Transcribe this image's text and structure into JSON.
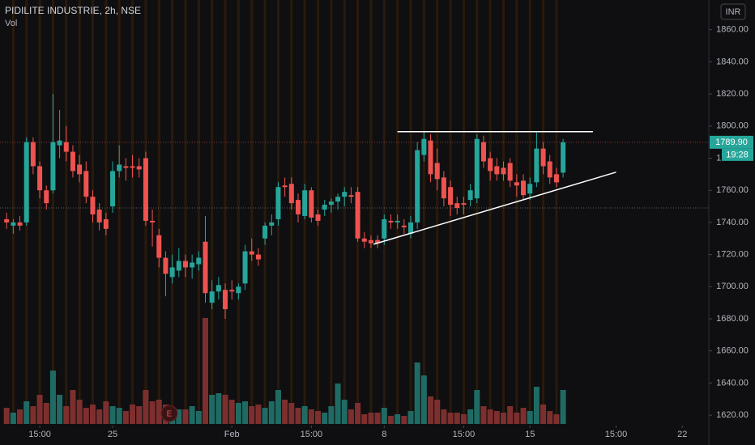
{
  "chart_data": {
    "type": "candlestick",
    "title": "PIDILITE INDUSTRIE, 2h, NSE",
    "volume_label": "Vol",
    "currency": "INR",
    "countdown": "19:28",
    "earnings_label": "E",
    "last_price": {
      "value": 1789.9,
      "label": "1789.90"
    },
    "reference_price": 1749,
    "colors": {
      "up": "#26a69a",
      "down": "#ef5350",
      "up_volume": "#1f6b64",
      "down_volume": "#7d2f2e"
    },
    "xlim": [
      -1,
      106
    ],
    "xticks": [
      {
        "value": 5,
        "label": "15:00"
      },
      {
        "value": 16,
        "label": "25"
      },
      {
        "value": 34,
        "label": "Feb"
      },
      {
        "value": 46,
        "label": "15:00"
      },
      {
        "value": 57,
        "label": "8"
      },
      {
        "value": 69,
        "label": "15:00"
      },
      {
        "value": 79,
        "label": "15"
      },
      {
        "value": 92,
        "label": "15:00"
      },
      {
        "value": 102,
        "label": "22"
      }
    ],
    "ylim": [
      1614,
      1878
    ],
    "yticks": [
      {
        "value": 1860,
        "label": "1860.00"
      },
      {
        "value": 1840,
        "label": "1840.00"
      },
      {
        "value": 1820,
        "label": "1820.00"
      },
      {
        "value": 1800,
        "label": "1800.00"
      },
      {
        "value": 1780,
        "label": "1780.00"
      },
      {
        "value": 1760,
        "label": "1760.00"
      },
      {
        "value": 1740,
        "label": "1740.00"
      },
      {
        "value": 1720,
        "label": "1720.00"
      },
      {
        "value": 1700,
        "label": "1700.00"
      },
      {
        "value": 1680,
        "label": "1680.00"
      },
      {
        "value": 1660,
        "label": "1660.00"
      },
      {
        "value": 1640,
        "label": "1640.00"
      },
      {
        "value": 1620,
        "label": "1620.00"
      }
    ],
    "open": [
      1742,
      1738,
      1740,
      1740,
      1790,
      1775,
      1760,
      1760,
      1788,
      1790,
      1784,
      1776,
      1772,
      1756,
      1748,
      1742,
      1750,
      1772,
      1775,
      1775,
      1775,
      1780,
      1741,
      1732,
      1718,
      1706,
      1710,
      1716,
      1712,
      1714,
      1728,
      1690,
      1697,
      1698,
      1698,
      1696,
      1702,
      1722,
      1720,
      1730,
      1738,
      1742,
      1763,
      1764,
      1754,
      1744,
      1760,
      1745,
      1748,
      1751,
      1753,
      1756,
      1757,
      1759,
      1730,
      1729,
      1729,
      1730,
      1741,
      1740,
      1738,
      1733,
      1740,
      1782,
      1791,
      1777,
      1768,
      1762,
      1752,
      1752,
      1754,
      1755,
      1790,
      1780,
      1775,
      1774,
      1777,
      1765,
      1766,
      1758,
      1765,
      1786,
      1778,
      1770,
      1771
    ],
    "high": [
      1746,
      1742,
      1744,
      1793,
      1793,
      1778,
      1763,
      1820,
      1810,
      1800,
      1788,
      1782,
      1778,
      1760,
      1752,
      1746,
      1778,
      1788,
      1780,
      1782,
      1780,
      1784,
      1748,
      1736,
      1722,
      1720,
      1724,
      1720,
      1720,
      1722,
      1744,
      1704,
      1706,
      1702,
      1704,
      1702,
      1726,
      1730,
      1724,
      1740,
      1745,
      1765,
      1768,
      1768,
      1758,
      1764,
      1762,
      1748,
      1754,
      1755,
      1758,
      1762,
      1762,
      1762,
      1734,
      1732,
      1732,
      1745,
      1745,
      1745,
      1742,
      1744,
      1790,
      1797,
      1795,
      1786,
      1772,
      1766,
      1756,
      1756,
      1764,
      1795,
      1794,
      1784,
      1780,
      1778,
      1780,
      1770,
      1770,
      1768,
      1796,
      1790,
      1782,
      1774,
      1792
    ],
    "low": [
      1736,
      1733,
      1735,
      1738,
      1770,
      1755,
      1748,
      1758,
      1780,
      1778,
      1768,
      1765,
      1752,
      1740,
      1735,
      1732,
      1746,
      1768,
      1766,
      1768,
      1768,
      1738,
      1725,
      1712,
      1694,
      1702,
      1706,
      1706,
      1705,
      1710,
      1690,
      1686,
      1692,
      1680,
      1692,
      1692,
      1698,
      1716,
      1713,
      1726,
      1732,
      1738,
      1756,
      1748,
      1740,
      1742,
      1740,
      1738,
      1744,
      1746,
      1748,
      1750,
      1752,
      1728,
      1724,
      1724,
      1724,
      1726,
      1736,
      1736,
      1733,
      1730,
      1736,
      1778,
      1765,
      1760,
      1750,
      1744,
      1745,
      1745,
      1750,
      1752,
      1774,
      1766,
      1766,
      1766,
      1762,
      1756,
      1754,
      1754,
      1762,
      1770,
      1764,
      1762,
      1768
    ],
    "close": [
      1740,
      1740,
      1738,
      1790,
      1775,
      1760,
      1752,
      1790,
      1791,
      1784,
      1772,
      1770,
      1756,
      1745,
      1740,
      1736,
      1772,
      1776,
      1774,
      1774,
      1773,
      1741,
      1740,
      1718,
      1708,
      1712,
      1716,
      1712,
      1715,
      1718,
      1696,
      1697,
      1701,
      1686,
      1697,
      1700,
      1722,
      1720,
      1717,
      1738,
      1740,
      1762,
      1762,
      1752,
      1745,
      1760,
      1743,
      1741,
      1751,
      1753,
      1756,
      1759,
      1756,
      1730,
      1728,
      1727,
      1727,
      1742,
      1740,
      1741,
      1737,
      1740,
      1785,
      1792,
      1770,
      1767,
      1755,
      1751,
      1749,
      1751,
      1760,
      1792,
      1778,
      1772,
      1770,
      1770,
      1766,
      1763,
      1757,
      1764,
      1786,
      1775,
      1768,
      1765,
      1789.9
    ],
    "volume": [
      20,
      14,
      18,
      28,
      22,
      36,
      26,
      66,
      36,
      22,
      42,
      30,
      20,
      24,
      18,
      28,
      22,
      20,
      16,
      24,
      22,
      42,
      28,
      30,
      24,
      20,
      18,
      18,
      22,
      16,
      131,
      36,
      38,
      36,
      30,
      26,
      28,
      22,
      24,
      20,
      28,
      42,
      30,
      26,
      20,
      22,
      18,
      16,
      14,
      22,
      50,
      30,
      18,
      26,
      12,
      14,
      14,
      20,
      10,
      12,
      10,
      16,
      76,
      60,
      34,
      30,
      18,
      14,
      14,
      12,
      18,
      42,
      22,
      18,
      16,
      14,
      22,
      14,
      20,
      16,
      46,
      24,
      16,
      12,
      42
    ],
    "drawings": [
      {
        "x": [
          59,
          88.5
        ],
        "y": [
          1796.5,
          1796.5
        ]
      },
      {
        "x": [
          55.4,
          92
        ],
        "y": [
          1726.4,
          1771.3
        ]
      }
    ]
  }
}
